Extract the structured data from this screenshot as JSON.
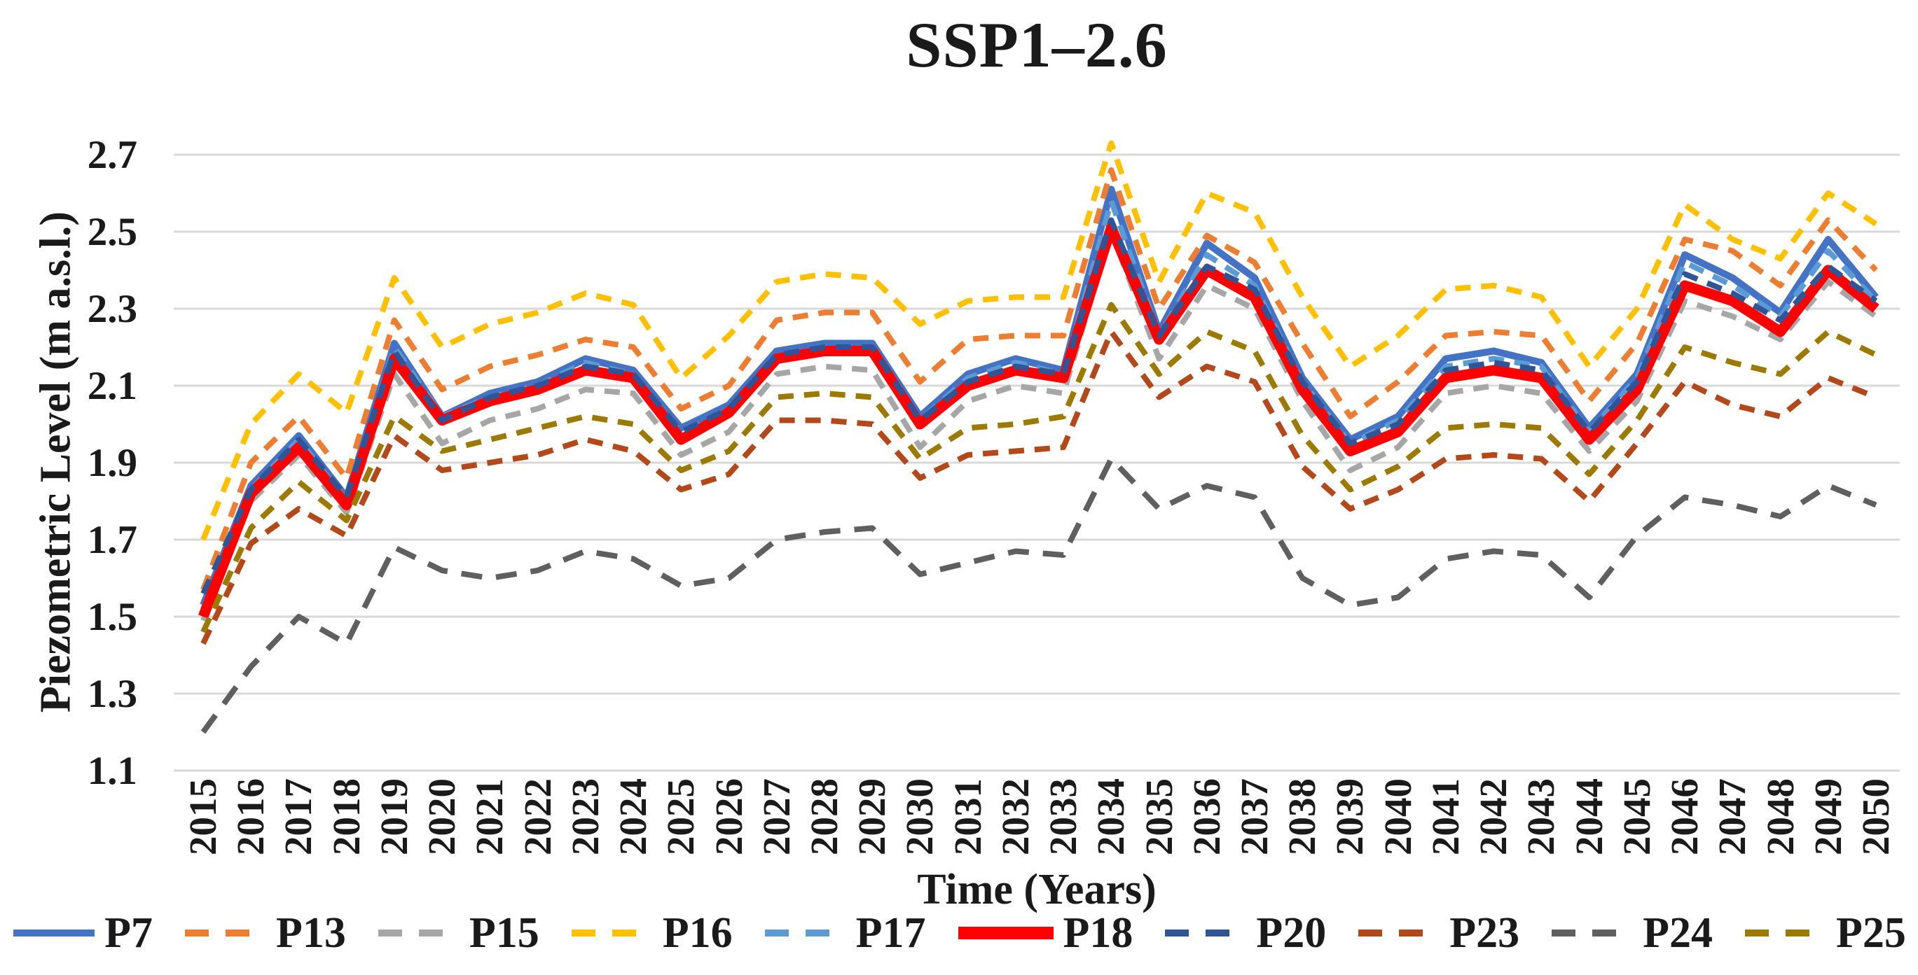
{
  "title": "SSP1–2.6",
  "palette": {
    "grid": "#D9D9D9",
    "text": "#1A1A1A",
    "background": "#FFFFFF"
  },
  "chart_data": {
    "type": "line",
    "title": "SSP1–2.6",
    "xlabel": "Time (Years)",
    "ylabel": "Piezometric Level (m a.s.l.)",
    "x": [
      2015,
      2016,
      2017,
      2018,
      2019,
      2020,
      2021,
      2022,
      2023,
      2024,
      2025,
      2026,
      2027,
      2028,
      2029,
      2030,
      2031,
      2032,
      2033,
      2034,
      2035,
      2036,
      2037,
      2038,
      2039,
      2040,
      2041,
      2042,
      2043,
      2044,
      2045,
      2046,
      2047,
      2048,
      2049,
      2050
    ],
    "ylim": [
      1.1,
      2.7
    ],
    "yticks": [
      1.1,
      1.3,
      1.5,
      1.7,
      1.9,
      2.1,
      2.3,
      2.5,
      2.7
    ],
    "ytick_labels": [
      "1.1",
      "1.3",
      "1.5",
      "1.7",
      "1.9",
      "2.1",
      "2.3",
      "2.5",
      "2.7"
    ],
    "grid": true,
    "legend_position": "bottom",
    "series": [
      {
        "name": "P7",
        "color": "#4472C4",
        "style": "solid",
        "values": [
          1.53,
          1.84,
          1.97,
          1.81,
          2.21,
          2.02,
          2.08,
          2.11,
          2.17,
          2.14,
          1.99,
          2.05,
          2.19,
          2.21,
          2.21,
          2.02,
          2.13,
          2.17,
          2.14,
          2.61,
          2.24,
          2.47,
          2.38,
          2.12,
          1.96,
          2.02,
          2.17,
          2.19,
          2.16,
          1.99,
          2.13,
          2.44,
          2.38,
          2.29,
          2.48,
          2.33
        ]
      },
      {
        "name": "P13",
        "color": "#ED7D31",
        "style": "dashed",
        "values": [
          1.57,
          1.9,
          2.02,
          1.86,
          2.27,
          2.09,
          2.15,
          2.18,
          2.22,
          2.2,
          2.04,
          2.1,
          2.27,
          2.29,
          2.29,
          2.11,
          2.22,
          2.23,
          2.23,
          2.66,
          2.3,
          2.49,
          2.42,
          2.21,
          2.02,
          2.11,
          2.23,
          2.24,
          2.23,
          2.06,
          2.21,
          2.48,
          2.45,
          2.36,
          2.53,
          2.4
        ]
      },
      {
        "name": "P15",
        "color": "#A6A6A6",
        "style": "dashed",
        "values": [
          1.49,
          1.8,
          1.92,
          1.77,
          2.13,
          1.95,
          2.01,
          2.04,
          2.09,
          2.08,
          1.92,
          1.98,
          2.13,
          2.15,
          2.14,
          1.94,
          2.06,
          2.1,
          2.08,
          2.5,
          2.17,
          2.36,
          2.3,
          2.06,
          1.88,
          1.94,
          2.08,
          2.1,
          2.08,
          1.93,
          2.06,
          2.32,
          2.28,
          2.22,
          2.37,
          2.28
        ]
      },
      {
        "name": "P16",
        "color": "#FFC000",
        "style": "dashed",
        "values": [
          1.7,
          2.0,
          2.13,
          2.03,
          2.38,
          2.2,
          2.26,
          2.29,
          2.34,
          2.31,
          2.12,
          2.23,
          2.37,
          2.39,
          2.38,
          2.26,
          2.32,
          2.33,
          2.33,
          2.73,
          2.37,
          2.6,
          2.55,
          2.33,
          2.15,
          2.23,
          2.35,
          2.36,
          2.33,
          2.15,
          2.3,
          2.57,
          2.48,
          2.43,
          2.6,
          2.52
        ]
      },
      {
        "name": "P17",
        "color": "#5B9BD5",
        "style": "dashed",
        "values": [
          1.52,
          1.83,
          1.96,
          1.8,
          2.2,
          2.02,
          2.07,
          2.1,
          2.16,
          2.13,
          1.98,
          2.04,
          2.18,
          2.2,
          2.2,
          2.01,
          2.12,
          2.16,
          2.13,
          2.58,
          2.23,
          2.44,
          2.36,
          2.11,
          1.95,
          2.01,
          2.15,
          2.17,
          2.15,
          1.98,
          2.12,
          2.42,
          2.36,
          2.28,
          2.45,
          2.32
        ]
      },
      {
        "name": "P18",
        "color": "#FF0000",
        "style": "solid-bold",
        "values": [
          1.5,
          1.82,
          1.94,
          1.79,
          2.17,
          2.01,
          2.06,
          2.09,
          2.14,
          2.12,
          1.96,
          2.03,
          2.17,
          2.19,
          2.19,
          2.0,
          2.1,
          2.14,
          2.12,
          2.51,
          2.22,
          2.4,
          2.33,
          2.09,
          1.93,
          1.98,
          2.12,
          2.14,
          2.12,
          1.96,
          2.09,
          2.36,
          2.32,
          2.24,
          2.4,
          2.3
        ]
      },
      {
        "name": "P20",
        "color": "#2F5597",
        "style": "dashed",
        "values": [
          1.56,
          1.83,
          1.96,
          1.81,
          2.19,
          2.01,
          2.07,
          2.1,
          2.15,
          2.13,
          1.98,
          2.04,
          2.18,
          2.2,
          2.2,
          2.01,
          2.11,
          2.15,
          2.13,
          2.53,
          2.23,
          2.41,
          2.35,
          2.11,
          1.95,
          2.0,
          2.14,
          2.16,
          2.14,
          1.98,
          2.11,
          2.39,
          2.34,
          2.27,
          2.41,
          2.32
        ]
      },
      {
        "name": "P23",
        "color": "#B3491B",
        "style": "dashed",
        "values": [
          1.43,
          1.69,
          1.78,
          1.71,
          1.97,
          1.88,
          1.9,
          1.92,
          1.96,
          1.93,
          1.83,
          1.87,
          2.01,
          2.01,
          2.0,
          1.86,
          1.92,
          1.93,
          1.94,
          2.24,
          2.07,
          2.15,
          2.11,
          1.89,
          1.78,
          1.83,
          1.91,
          1.92,
          1.91,
          1.8,
          1.95,
          2.11,
          2.05,
          2.02,
          2.12,
          2.07
        ]
      },
      {
        "name": "P24",
        "color": "#5F5F5F",
        "style": "dashed-long",
        "values": [
          1.2,
          1.37,
          1.5,
          1.43,
          1.68,
          1.62,
          1.6,
          1.62,
          1.67,
          1.65,
          1.58,
          1.6,
          1.7,
          1.72,
          1.73,
          1.61,
          1.64,
          1.67,
          1.66,
          1.91,
          1.78,
          1.84,
          1.81,
          1.6,
          1.53,
          1.55,
          1.65,
          1.67,
          1.66,
          1.55,
          1.71,
          1.81,
          1.79,
          1.76,
          1.84,
          1.79
        ]
      },
      {
        "name": "P25",
        "color": "#9C7A00",
        "style": "dashed",
        "values": [
          1.46,
          1.73,
          1.85,
          1.75,
          2.02,
          1.93,
          1.96,
          1.99,
          2.02,
          2.0,
          1.88,
          1.93,
          2.07,
          2.08,
          2.07,
          1.91,
          1.99,
          2.0,
          2.02,
          2.31,
          2.13,
          2.24,
          2.19,
          1.97,
          1.83,
          1.89,
          1.99,
          2.0,
          1.99,
          1.87,
          2.01,
          2.2,
          2.16,
          2.13,
          2.24,
          2.18
        ]
      }
    ]
  }
}
